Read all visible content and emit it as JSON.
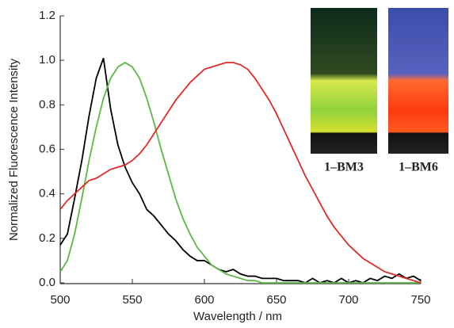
{
  "chart_data": {
    "type": "line",
    "x_label": "Wavelength / nm",
    "y_label": "Normalized Fluorescence Intensity",
    "annotations": [
      "1–BM3",
      "1–BM6"
    ],
    "x": [
      500,
      505,
      510,
      515,
      520,
      525,
      530,
      535,
      540,
      545,
      550,
      555,
      560,
      565,
      570,
      575,
      580,
      585,
      590,
      595,
      600,
      605,
      610,
      615,
      620,
      625,
      630,
      635,
      640,
      645,
      650,
      655,
      660,
      665,
      670,
      675,
      680,
      685,
      690,
      695,
      700,
      705,
      710,
      715,
      720,
      725,
      730,
      735,
      740,
      745,
      750
    ],
    "series": [
      {
        "color": "#000000",
        "values": [
          0.17,
          0.22,
          0.38,
          0.55,
          0.75,
          0.92,
          1.01,
          0.78,
          0.62,
          0.52,
          0.45,
          0.4,
          0.33,
          0.3,
          0.26,
          0.22,
          0.19,
          0.15,
          0.12,
          0.1,
          0.1,
          0.08,
          0.06,
          0.05,
          0.06,
          0.04,
          0.03,
          0.03,
          0.02,
          0.02,
          0.02,
          0.01,
          0.01,
          0.01,
          0.0,
          0.02,
          0.0,
          0.01,
          0.0,
          0.02,
          0.0,
          0.01,
          0.0,
          0.02,
          0.01,
          0.03,
          0.02,
          0.04,
          0.02,
          0.03,
          0.01
        ]
      },
      {
        "color": "#5cb846",
        "values": [
          0.05,
          0.1,
          0.22,
          0.38,
          0.55,
          0.7,
          0.83,
          0.92,
          0.97,
          0.99,
          0.97,
          0.92,
          0.83,
          0.72,
          0.6,
          0.49,
          0.38,
          0.29,
          0.22,
          0.16,
          0.12,
          0.08,
          0.06,
          0.04,
          0.03,
          0.02,
          0.01,
          0.01,
          0.0,
          0.0,
          0.0,
          0.0,
          0.0,
          0.0,
          0.0,
          0.0,
          0.0,
          0.0,
          0.0,
          0.0,
          0.0,
          0.0,
          0.0,
          0.0,
          0.0,
          0.0,
          0.0,
          0.0,
          0.0,
          0.0,
          0.0
        ]
      },
      {
        "color": "#e02a2a",
        "values": [
          0.33,
          0.37,
          0.4,
          0.43,
          0.46,
          0.47,
          0.49,
          0.51,
          0.52,
          0.53,
          0.55,
          0.58,
          0.62,
          0.67,
          0.72,
          0.77,
          0.82,
          0.86,
          0.9,
          0.93,
          0.96,
          0.97,
          0.98,
          0.99,
          0.99,
          0.98,
          0.96,
          0.92,
          0.87,
          0.82,
          0.76,
          0.69,
          0.62,
          0.55,
          0.48,
          0.42,
          0.36,
          0.3,
          0.25,
          0.21,
          0.17,
          0.14,
          0.11,
          0.09,
          0.07,
          0.05,
          0.04,
          0.03,
          0.02,
          0.01,
          0.0
        ]
      }
    ],
    "xlim": [
      500,
      750
    ],
    "xticks": [
      500,
      550,
      600,
      650,
      700,
      750
    ],
    "ylim": [
      0,
      1.2
    ],
    "yticks": [
      {
        "value": 0,
        "label": "0.0"
      },
      0.2,
      0.4,
      0.6,
      0.8,
      {
        "value": 1,
        "label": "1.0"
      },
      1.2
    ],
    "grid": false
  }
}
